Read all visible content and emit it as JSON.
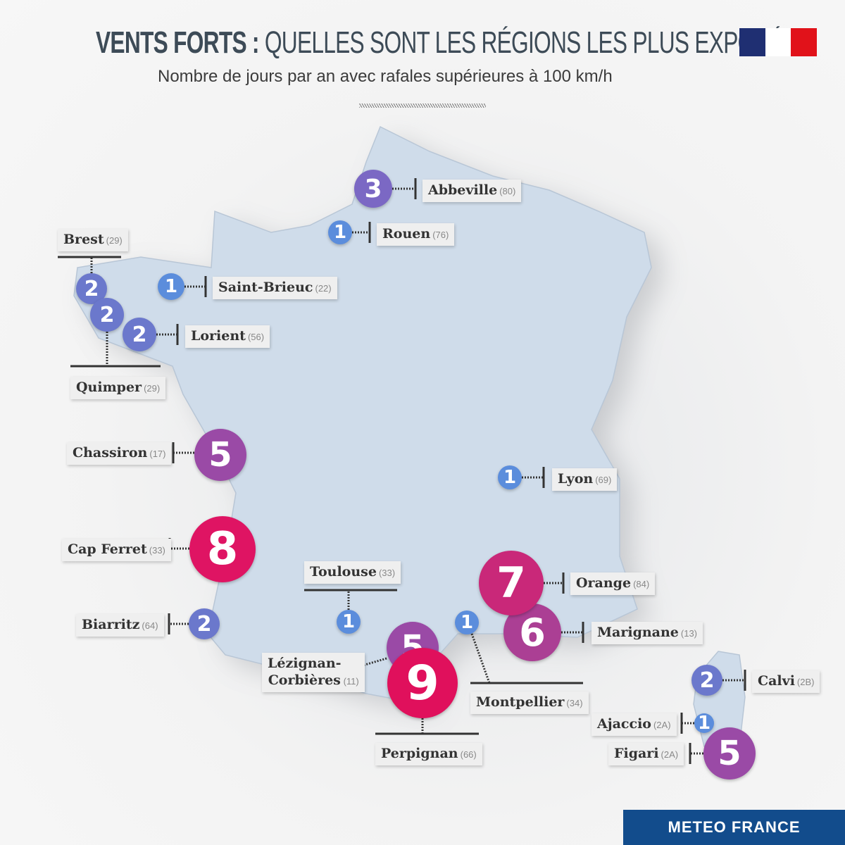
{
  "header": {
    "title_bold": "VENTS FORTS :",
    "title_light": "QUELLES SONT LES RÉGIONS LES PLUS EXPOSÉES",
    "subtitle": "Nombre de jours par an avec rafales supérieures à 100 km/h",
    "flag_colors": [
      "#1f2f72",
      "#ffffff",
      "#e1121a"
    ]
  },
  "legend_colors": {
    "1": "#5b8ddc",
    "2": "#6b78cc",
    "3": "#7b68c4",
    "5": "#9a4aa6",
    "6": "#ab3f94",
    "7": "#c92879",
    "8": "#df1463",
    "9": "#e0105c"
  },
  "stations": [
    {
      "name": "Abbeville",
      "dept": "(80)",
      "value": "3"
    },
    {
      "name": "Rouen",
      "dept": "(76)",
      "value": "1"
    },
    {
      "name": "Brest",
      "dept": "(29)",
      "value": "2"
    },
    {
      "name": "Saint-Brieuc",
      "dept": "(22)",
      "value": "1"
    },
    {
      "name": "Quimper",
      "dept": "(29)",
      "value": "2"
    },
    {
      "name": "Lorient",
      "dept": "(56)",
      "value": "2"
    },
    {
      "name": "Chassiron",
      "dept": "(17)",
      "value": "5"
    },
    {
      "name": "Lyon",
      "dept": "(69)",
      "value": "1"
    },
    {
      "name": "Cap Ferret",
      "dept": "(33)",
      "value": "8"
    },
    {
      "name": "Toulouse",
      "dept": "(33)",
      "value": "1"
    },
    {
      "name": "Orange",
      "dept": "(84)",
      "value": "7"
    },
    {
      "name": "Biarritz",
      "dept": "(64)",
      "value": "2"
    },
    {
      "name": "Lézignan-Corbières",
      "dept": "(11)",
      "value": "5"
    },
    {
      "name": "Montpellier",
      "dept": "(34)",
      "value": "1"
    },
    {
      "name": "Marignane",
      "dept": "(13)",
      "value": "6"
    },
    {
      "name": "Perpignan",
      "dept": "(66)",
      "value": "9"
    },
    {
      "name": "Calvi",
      "dept": "(2B)",
      "value": "2"
    },
    {
      "name": "Ajaccio",
      "dept": "(2A)",
      "value": "1"
    },
    {
      "name": "Figari",
      "dept": "(2A)",
      "value": "5"
    }
  ],
  "footer": {
    "brand": "METEO FRANCE"
  }
}
